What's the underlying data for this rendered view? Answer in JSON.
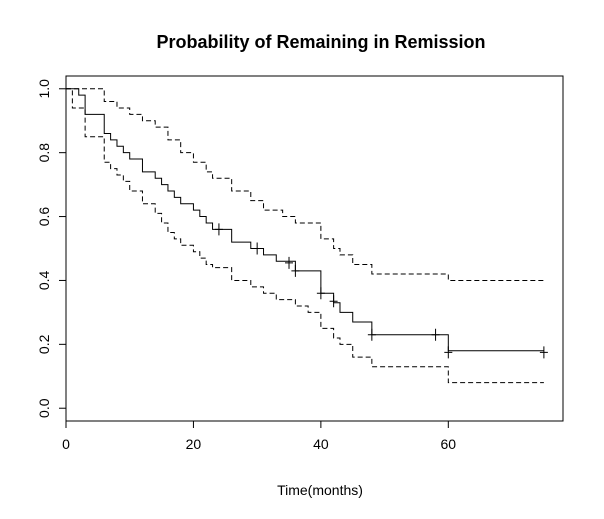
{
  "chart_data": {
    "type": "line",
    "title": "Probability of Remaining in Remission",
    "xlabel": "Time(months)",
    "ylabel": "",
    "xlim": [
      0,
      78
    ],
    "ylim": [
      -0.04,
      1.04
    ],
    "x_ticks": [
      0,
      20,
      40,
      60
    ],
    "y_ticks": [
      0.0,
      0.2,
      0.4,
      0.6,
      0.8,
      1.0
    ],
    "x_tick_labels": [
      "0",
      "20",
      "40",
      "60"
    ],
    "y_tick_labels": [
      "0.0",
      "0.2",
      "0.4",
      "0.6",
      "0.8",
      "1.0"
    ],
    "grid": false,
    "series": [
      {
        "style": "solid",
        "color": "#000000",
        "x": [
          0,
          2,
          3,
          6,
          7,
          8,
          9,
          10,
          12,
          14,
          15,
          16,
          17,
          18,
          20,
          21,
          22,
          23,
          26,
          29,
          31,
          33,
          36,
          38,
          40,
          42,
          43,
          45,
          48,
          60,
          75
        ],
        "y": [
          1.0,
          0.98,
          0.92,
          0.86,
          0.84,
          0.82,
          0.8,
          0.78,
          0.74,
          0.72,
          0.7,
          0.68,
          0.66,
          0.64,
          0.62,
          0.6,
          0.58,
          0.56,
          0.52,
          0.5,
          0.48,
          0.46,
          0.43,
          0.43,
          0.36,
          0.33,
          0.3,
          0.27,
          0.23,
          0.18,
          0.18
        ],
        "censored": [
          [
            24,
            0.56
          ],
          [
            30,
            0.5
          ],
          [
            35,
            0.455
          ],
          [
            36,
            0.43
          ],
          [
            40,
            0.36
          ],
          [
            42,
            0.335
          ],
          [
            48,
            0.23
          ],
          [
            58,
            0.23
          ],
          [
            60,
            0.175
          ],
          [
            75,
            0.175
          ]
        ]
      },
      {
        "style": "dashed",
        "color": "#000000",
        "x": [
          0,
          6,
          8,
          10,
          12,
          14,
          16,
          18,
          20,
          22,
          23,
          26,
          29,
          31,
          34,
          36,
          40,
          42,
          43,
          45,
          48,
          60,
          75
        ],
        "y": [
          1.0,
          0.96,
          0.94,
          0.92,
          0.9,
          0.88,
          0.84,
          0.8,
          0.77,
          0.74,
          0.72,
          0.68,
          0.65,
          0.62,
          0.6,
          0.58,
          0.53,
          0.5,
          0.48,
          0.45,
          0.42,
          0.4,
          0.4
        ]
      },
      {
        "style": "dashed",
        "color": "#000000",
        "x": [
          0,
          1,
          3,
          6,
          7,
          8,
          9,
          10,
          12,
          14,
          15,
          16,
          17,
          18,
          20,
          21,
          22,
          23,
          26,
          29,
          31,
          33,
          36,
          38,
          40,
          42,
          43,
          45,
          48,
          60,
          75
        ],
        "y": [
          1.0,
          0.94,
          0.85,
          0.77,
          0.75,
          0.73,
          0.71,
          0.68,
          0.64,
          0.61,
          0.58,
          0.55,
          0.53,
          0.51,
          0.49,
          0.47,
          0.45,
          0.44,
          0.4,
          0.38,
          0.36,
          0.34,
          0.32,
          0.3,
          0.25,
          0.22,
          0.2,
          0.16,
          0.13,
          0.08,
          0.08
        ]
      }
    ]
  }
}
